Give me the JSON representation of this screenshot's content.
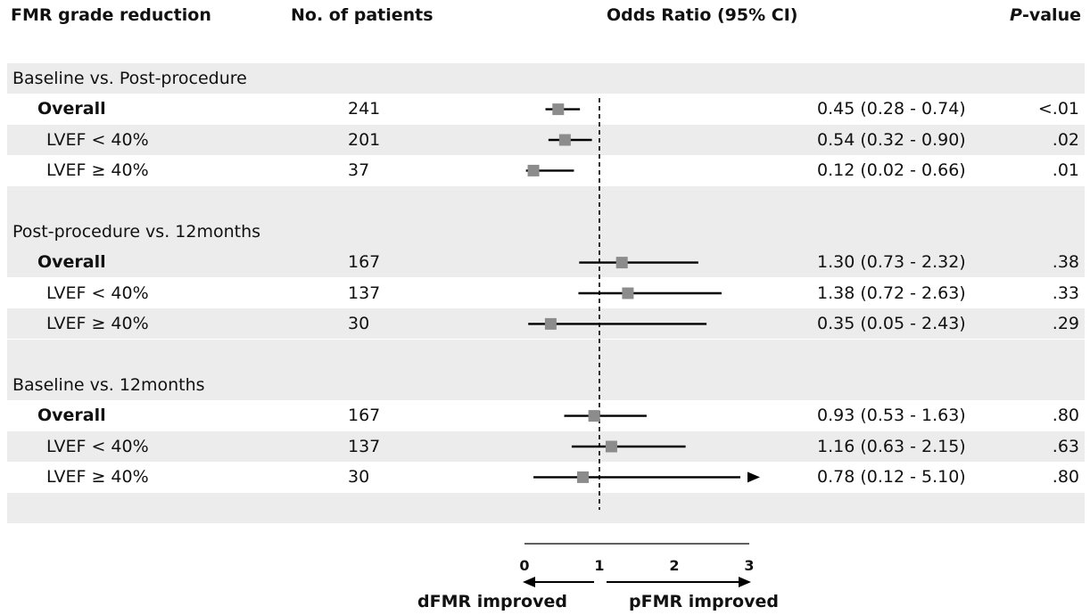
{
  "headers": {
    "label": "FMR grade reduction",
    "n": "No. of patients",
    "or": "Odds Ratio (95% CI)",
    "p_italic": "P",
    "p_rest": "-value"
  },
  "x_left_label": "dFMR improved",
  "x_right_label": "pFMR improved",
  "colors": {
    "marker": "#8c8c8c",
    "line": "#000000",
    "shade": "#ececec"
  },
  "chart_data": {
    "type": "forest",
    "reference_line": 1,
    "xlim": [
      0,
      3
    ],
    "xticks": [
      "0",
      "1",
      "2",
      "3"
    ],
    "groups": [
      {
        "title": "Baseline vs. Post-procedure",
        "rows": [
          {
            "label": "Overall",
            "level": "overall",
            "n": "241",
            "or": 0.45,
            "lo": 0.28,
            "hi": 0.74,
            "or_text": "0.45 (0.28 - 0.74)",
            "p": "<.01",
            "arrow": false
          },
          {
            "label": "LVEF < 40%",
            "level": "sub",
            "n": "201",
            "or": 0.54,
            "lo": 0.32,
            "hi": 0.9,
            "or_text": "0.54 (0.32 - 0.90)",
            "p": ".02",
            "arrow": false
          },
          {
            "label": "LVEF ≥ 40%",
            "level": "sub",
            "n": "37",
            "or": 0.12,
            "lo": 0.02,
            "hi": 0.66,
            "or_text": "0.12 (0.02 - 0.66)",
            "p": ".01",
            "arrow": false
          }
        ]
      },
      {
        "title": "Post-procedure vs. 12months",
        "rows": [
          {
            "label": "Overall",
            "level": "overall",
            "n": "167",
            "or": 1.3,
            "lo": 0.73,
            "hi": 2.32,
            "or_text": "1.30 (0.73 - 2.32)",
            "p": ".38",
            "arrow": false
          },
          {
            "label": "LVEF < 40%",
            "level": "sub",
            "n": "137",
            "or": 1.38,
            "lo": 0.72,
            "hi": 2.63,
            "or_text": "1.38 (0.72 - 2.63)",
            "p": ".33",
            "arrow": false
          },
          {
            "label": "LVEF ≥ 40%",
            "level": "sub",
            "n": "30",
            "or": 0.35,
            "lo": 0.05,
            "hi": 2.43,
            "or_text": "0.35 (0.05 - 2.43)",
            "p": ".29",
            "arrow": false
          }
        ]
      },
      {
        "title": "Baseline vs. 12months",
        "rows": [
          {
            "label": "Overall",
            "level": "overall",
            "n": "167",
            "or": 0.93,
            "lo": 0.53,
            "hi": 1.63,
            "or_text": "0.93 (0.53 - 1.63)",
            "p": ".80",
            "arrow": false
          },
          {
            "label": "LVEF < 40%",
            "level": "sub",
            "n": "137",
            "or": 1.16,
            "lo": 0.63,
            "hi": 2.15,
            "or_text": "1.16 (0.63 - 2.15)",
            "p": ".63",
            "arrow": false
          },
          {
            "label": "LVEF ≥ 40%",
            "level": "sub",
            "n": "30",
            "or": 0.78,
            "lo": 0.12,
            "hi": 5.1,
            "or_text": "0.78 (0.12 - 5.10)",
            "p": ".80",
            "arrow": true
          }
        ]
      }
    ]
  }
}
